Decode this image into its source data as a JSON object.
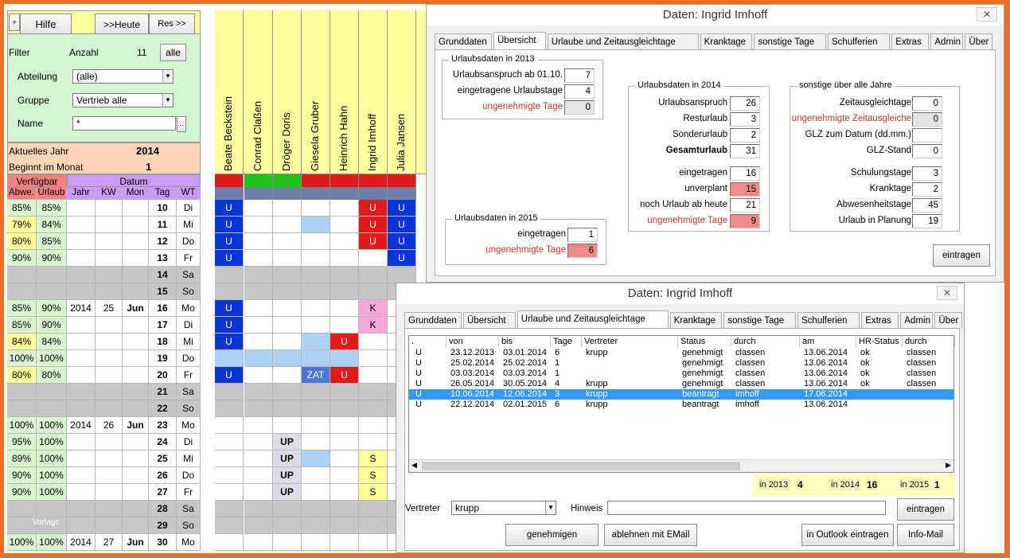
{
  "sheet": {
    "hilfe": "Hilfe",
    "heute": ">>Heute",
    "res": "Res >>",
    "small_btn": "+",
    "filter": "Filter",
    "anzahl": "Anzahl",
    "anzahl_val": "11",
    "alle": "alle",
    "abteilung": "Abteilung",
    "abteilung_val": "(alle)",
    "gruppe": "Gruppe",
    "gruppe_val": "Vertrieb alle",
    "name": "Name",
    "name_val": "*",
    "name_btn": "..",
    "aktuelles_jahr": "Aktuelles Jahr",
    "jahr_val": "2014",
    "beginnt": "Beginnt im Monat",
    "monat_val": "1",
    "verfuegbar": "Verfügbar",
    "datum": "Datum",
    "col_heads": [
      "Abwe.",
      "Urlaub",
      "Jahr",
      "KW",
      "Mon",
      "Tag",
      "WT"
    ],
    "vorlage": "Vorlage",
    "employees": [
      "Beate Beckstein",
      "Conrad Claßen",
      "Dröger Doris",
      "Giesela Gruber",
      "Heinrich Hahn",
      "Ingrid Imhoff",
      "Julia Jansen"
    ],
    "rows": [
      {
        "a": "85%",
        "u": "85%",
        "j": "",
        "kw": "",
        "m": "",
        "t": "10",
        "wt": "Di",
        "c": [
          "U",
          "",
          "",
          "",
          "",
          "U",
          "U"
        ]
      },
      {
        "a": "79%",
        "u": "84%",
        "j": "",
        "kw": "",
        "m": "",
        "t": "11",
        "wt": "Mi",
        "c": [
          "U",
          "",
          "",
          "",
          "",
          "U",
          "U"
        ]
      },
      {
        "a": "80%",
        "u": "85%",
        "j": "",
        "kw": "",
        "m": "",
        "t": "12",
        "wt": "Do",
        "c": [
          "U",
          "",
          "",
          "",
          "",
          "U",
          "U"
        ]
      },
      {
        "a": "90%",
        "u": "90%",
        "j": "",
        "kw": "",
        "m": "",
        "t": "13",
        "wt": "Fr",
        "c": [
          "U",
          "",
          "",
          "",
          "",
          "",
          "U"
        ]
      },
      {
        "a": "",
        "u": "",
        "j": "",
        "kw": "",
        "m": "",
        "t": "14",
        "wt": "Sa",
        "c": [
          "",
          "",
          "",
          "",
          "",
          "",
          ""
        ]
      },
      {
        "a": "",
        "u": "",
        "j": "",
        "kw": "",
        "m": "",
        "t": "15",
        "wt": "So",
        "c": [
          "",
          "",
          "",
          "",
          "",
          "",
          ""
        ]
      },
      {
        "a": "85%",
        "u": "90%",
        "j": "2014",
        "kw": "25",
        "m": "Jun",
        "t": "16",
        "wt": "Mo",
        "c": [
          "U",
          "",
          "",
          "",
          "",
          "K",
          ""
        ]
      },
      {
        "a": "85%",
        "u": "90%",
        "j": "",
        "kw": "",
        "m": "",
        "t": "17",
        "wt": "Di",
        "c": [
          "U",
          "",
          "",
          "",
          "",
          "K",
          ""
        ]
      },
      {
        "a": "84%",
        "u": "84%",
        "j": "",
        "kw": "",
        "m": "",
        "t": "18",
        "wt": "Mi",
        "c": [
          "U",
          "",
          "",
          "",
          "U",
          "",
          ""
        ]
      },
      {
        "a": "100%",
        "u": "100%",
        "j": "",
        "kw": "",
        "m": "",
        "t": "19",
        "wt": "Do",
        "c": [
          "",
          "",
          "",
          "",
          "",
          "",
          ""
        ]
      },
      {
        "a": "80%",
        "u": "80%",
        "j": "",
        "kw": "",
        "m": "",
        "t": "20",
        "wt": "Fr",
        "c": [
          "U",
          "",
          "",
          "ZAT",
          "U",
          "",
          ""
        ]
      },
      {
        "a": "",
        "u": "",
        "j": "",
        "kw": "",
        "m": "",
        "t": "21",
        "wt": "Sa",
        "c": [
          "",
          "",
          "",
          "",
          "",
          "",
          ""
        ]
      },
      {
        "a": "",
        "u": "",
        "j": "",
        "kw": "",
        "m": "",
        "t": "22",
        "wt": "So",
        "c": [
          "",
          "",
          "",
          "",
          "",
          "",
          ""
        ]
      },
      {
        "a": "100%",
        "u": "100%",
        "j": "2014",
        "kw": "26",
        "m": "Jun",
        "t": "23",
        "wt": "Mo",
        "c": [
          "",
          "",
          "",
          "",
          "",
          "",
          ""
        ]
      },
      {
        "a": "95%",
        "u": "100%",
        "j": "",
        "kw": "",
        "m": "",
        "t": "24",
        "wt": "Di",
        "c": [
          "",
          "",
          "UP",
          "",
          "",
          "",
          ""
        ]
      },
      {
        "a": "89%",
        "u": "100%",
        "j": "",
        "kw": "",
        "m": "",
        "t": "25",
        "wt": "Mi",
        "c": [
          "",
          "",
          "UP",
          "",
          "",
          "S",
          ""
        ]
      },
      {
        "a": "90%",
        "u": "100%",
        "j": "",
        "kw": "",
        "m": "",
        "t": "26",
        "wt": "Do",
        "c": [
          "",
          "",
          "UP",
          "",
          "",
          "S",
          ""
        ]
      },
      {
        "a": "90%",
        "u": "100%",
        "j": "",
        "kw": "",
        "m": "",
        "t": "27",
        "wt": "Fr",
        "c": [
          "",
          "",
          "UP",
          "",
          "",
          "S",
          ""
        ]
      },
      {
        "a": "",
        "u": "",
        "j": "",
        "kw": "",
        "m": "",
        "t": "28",
        "wt": "Sa",
        "c": [
          "",
          "",
          "",
          "",
          "",
          "",
          ""
        ]
      },
      {
        "a": "",
        "u": "",
        "j": "",
        "kw": "",
        "m": "",
        "t": "29",
        "wt": "So",
        "c": [
          "",
          "",
          "",
          "",
          "",
          "",
          ""
        ]
      },
      {
        "a": "100%",
        "u": "100%",
        "j": "2014",
        "kw": "27",
        "m": "Jun",
        "t": "30",
        "wt": "Mo",
        "c": [
          "",
          "",
          "",
          "",
          "",
          "",
          ""
        ]
      }
    ],
    "colors": {
      "blue": "#0a35d6",
      "red": "#e21a1a",
      "lightblue": "#a9d2f5",
      "pink": "#f9a9d9",
      "yellow": "#ffff99",
      "weekend": "#c6c6c6",
      "green": "#1cc41c"
    }
  },
  "dlg1": {
    "title": "Daten: Ingrid Imhoff",
    "close": "✕",
    "tabs": [
      "Grunddaten",
      "Übersicht",
      "Urlaube und Zeitausgleichtage",
      "Kranktage",
      "sonstige Tage",
      "Schulferien",
      "Extras",
      "Admin",
      "Über"
    ],
    "g2013": {
      "title": "Urlaubsdaten in 2013",
      "rows": [
        [
          "Urlaubsanspruch ab 01.10.",
          "7"
        ],
        [
          "eingetragene Urlaubstage",
          "4"
        ],
        [
          "ungenehmigte Tage",
          "0"
        ]
      ]
    },
    "g2015": {
      "title": "Urlaubsdaten in 2015",
      "rows": [
        [
          "eingetragen",
          "1"
        ],
        [
          "ungenehmigte Tage",
          "6"
        ]
      ]
    },
    "g2014": {
      "title": "Urlaubsdaten in 2014",
      "rows": [
        [
          "Urlaubsanspruch",
          "26"
        ],
        [
          "Resturlaub",
          "3"
        ],
        [
          "Sonderurlaub",
          "2"
        ],
        [
          "Gesamturlaub",
          "31"
        ],
        [
          "eingetragen",
          "16"
        ],
        [
          "unverplant",
          "15"
        ],
        [
          "noch Urlaub ab heute",
          "21"
        ],
        [
          "ungenehmigte Tage",
          "9"
        ]
      ]
    },
    "gsonst": {
      "title": "sonstige über alle Jahre",
      "rows": [
        [
          "Zeitausgleichtage",
          "0"
        ],
        [
          "ungenehmigte Zeitausgleiche",
          "0"
        ],
        [
          "GLZ zum Datum (dd.mm.)",
          ""
        ],
        [
          "GLZ-Stand",
          "0"
        ],
        [
          "Schulungstage",
          "3"
        ],
        [
          "Kranktage",
          "2"
        ],
        [
          "Abwesenheitstage",
          "45"
        ],
        [
          "Urlaub in Planung",
          "19"
        ]
      ]
    },
    "eintragen": "eintragen"
  },
  "dlg2": {
    "title": "Daten: Ingrid Imhoff",
    "close": "✕",
    "tabs": [
      "Grunddaten",
      "Übersicht",
      "Urlaube und Zeitausgleichtage",
      "Kranktage",
      "sonstige Tage",
      "Schulferien",
      "Extras",
      "Admin",
      "Über"
    ],
    "headers": [
      ".",
      "von",
      "bis",
      "Tage",
      "Vertreter",
      "Status",
      "durch",
      "am",
      "HR-Status",
      "durch"
    ],
    "rows": [
      [
        "U",
        "23.12.2013",
        "03.01.2014",
        "6",
        "krupp",
        "genehmigt",
        "classen",
        "13.06.2014",
        "ok",
        "classen"
      ],
      [
        "U",
        "25.02.2014",
        "25.02.2014",
        "1",
        "",
        "genehmigt",
        "classen",
        "13.06.2014",
        "ok",
        "classen"
      ],
      [
        "U",
        "03.03.2014",
        "03.03.2014",
        "1",
        "",
        "genehmigt",
        "classen",
        "13.06.2014",
        "ok",
        "classen"
      ],
      [
        "U",
        "26.05.2014",
        "30.05.2014",
        "4",
        "krupp",
        "genehmigt",
        "classen",
        "13.06.2014",
        "ok",
        "classen"
      ],
      [
        "U",
        "10.06.2014",
        "12.06.2014",
        "3",
        "krupp",
        "beantragt",
        "imhoff",
        "17.06.2014",
        "",
        ""
      ],
      [
        "U",
        "22.12.2014",
        "02.01.2015",
        "6",
        "krupp",
        "beantragt",
        "imhoff",
        "13.06.2014",
        "",
        ""
      ]
    ],
    "summary": {
      "l2013": "in 2013",
      "v2013": "4",
      "l2014": "in 2014",
      "v2014": "16",
      "l2015": "in 2015",
      "v2015": "1"
    },
    "vertreter": "Vertreter",
    "vertreter_val": "krupp",
    "hinweis": "Hinweis",
    "hinweis_val": "",
    "eintragen": "eintragen",
    "genehmigen": "genehmigen",
    "ablehnen": "ablehnen mit EMail",
    "outlook": "in Outlook eintragen",
    "infomail": "Info-Mail"
  }
}
